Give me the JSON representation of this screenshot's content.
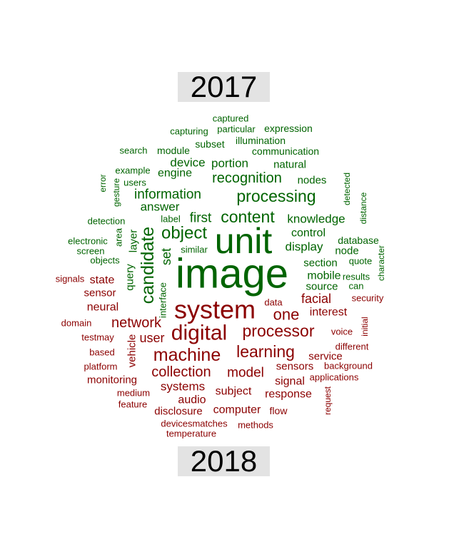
{
  "labels": {
    "top_year": "2017",
    "bottom_year": "2018"
  },
  "colors": {
    "top_words": "#006400",
    "bottom_words": "#8b0000",
    "label_bg": "#e3e3e3"
  },
  "words": [
    {
      "text": "captured",
      "group": "2017"
    },
    {
      "text": "capturing",
      "group": "2017"
    },
    {
      "text": "particular",
      "group": "2017"
    },
    {
      "text": "expression",
      "group": "2017"
    },
    {
      "text": "illumination",
      "group": "2017"
    },
    {
      "text": "search",
      "group": "2017"
    },
    {
      "text": "module",
      "group": "2017"
    },
    {
      "text": "subset",
      "group": "2017"
    },
    {
      "text": "communication",
      "group": "2017"
    },
    {
      "text": "device",
      "group": "2017"
    },
    {
      "text": "portion",
      "group": "2017"
    },
    {
      "text": "natural",
      "group": "2017"
    },
    {
      "text": "example",
      "group": "2017"
    },
    {
      "text": "engine",
      "group": "2017"
    },
    {
      "text": "users",
      "group": "2017"
    },
    {
      "text": "recognition",
      "group": "2017"
    },
    {
      "text": "nodes",
      "group": "2017"
    },
    {
      "text": "error",
      "group": "2017"
    },
    {
      "text": "gesture",
      "group": "2017"
    },
    {
      "text": "information",
      "group": "2017"
    },
    {
      "text": "processing",
      "group": "2017"
    },
    {
      "text": "detected",
      "group": "2017"
    },
    {
      "text": "answer",
      "group": "2017"
    },
    {
      "text": "distance",
      "group": "2017"
    },
    {
      "text": "detection",
      "group": "2017"
    },
    {
      "text": "label",
      "group": "2017"
    },
    {
      "text": "first",
      "group": "2017"
    },
    {
      "text": "content",
      "group": "2017"
    },
    {
      "text": "knowledge",
      "group": "2017"
    },
    {
      "text": "area",
      "group": "2017"
    },
    {
      "text": "layer",
      "group": "2017"
    },
    {
      "text": "candidate",
      "group": "2017"
    },
    {
      "text": "object",
      "group": "2017"
    },
    {
      "text": "unit",
      "group": "2017"
    },
    {
      "text": "control",
      "group": "2017"
    },
    {
      "text": "database",
      "group": "2017"
    },
    {
      "text": "electronic",
      "group": "2017"
    },
    {
      "text": "screen",
      "group": "2017"
    },
    {
      "text": "similar",
      "group": "2017"
    },
    {
      "text": "display",
      "group": "2017"
    },
    {
      "text": "node",
      "group": "2017"
    },
    {
      "text": "character",
      "group": "2017"
    },
    {
      "text": "objects",
      "group": "2017"
    },
    {
      "text": "set",
      "group": "2017"
    },
    {
      "text": "section",
      "group": "2017"
    },
    {
      "text": "quote",
      "group": "2017"
    },
    {
      "text": "image",
      "group": "2017"
    },
    {
      "text": "mobile",
      "group": "2017"
    },
    {
      "text": "results",
      "group": "2017"
    },
    {
      "text": "query",
      "group": "2017"
    },
    {
      "text": "source",
      "group": "2017"
    },
    {
      "text": "can",
      "group": "2017"
    },
    {
      "text": "interface",
      "group": "2017"
    },
    {
      "text": "signals",
      "group": "2018"
    },
    {
      "text": "state",
      "group": "2018"
    },
    {
      "text": "sensor",
      "group": "2018"
    },
    {
      "text": "security",
      "group": "2018"
    },
    {
      "text": "data",
      "group": "2018"
    },
    {
      "text": "facial",
      "group": "2018"
    },
    {
      "text": "system",
      "group": "2018"
    },
    {
      "text": "neural",
      "group": "2018"
    },
    {
      "text": "one",
      "group": "2018"
    },
    {
      "text": "interest",
      "group": "2018"
    },
    {
      "text": "domain",
      "group": "2018"
    },
    {
      "text": "network",
      "group": "2018"
    },
    {
      "text": "initial",
      "group": "2018"
    },
    {
      "text": "processor",
      "group": "2018"
    },
    {
      "text": "digital",
      "group": "2018"
    },
    {
      "text": "voice",
      "group": "2018"
    },
    {
      "text": "testmay",
      "group": "2018"
    },
    {
      "text": "user",
      "group": "2018"
    },
    {
      "text": "different",
      "group": "2018"
    },
    {
      "text": "learning",
      "group": "2018"
    },
    {
      "text": "based",
      "group": "2018"
    },
    {
      "text": "machine",
      "group": "2018"
    },
    {
      "text": "service",
      "group": "2018"
    },
    {
      "text": "vehicle",
      "group": "2018"
    },
    {
      "text": "platform",
      "group": "2018"
    },
    {
      "text": "sensors",
      "group": "2018"
    },
    {
      "text": "background",
      "group": "2018"
    },
    {
      "text": "collection",
      "group": "2018"
    },
    {
      "text": "model",
      "group": "2018"
    },
    {
      "text": "applications",
      "group": "2018"
    },
    {
      "text": "monitoring",
      "group": "2018"
    },
    {
      "text": "signal",
      "group": "2018"
    },
    {
      "text": "systems",
      "group": "2018"
    },
    {
      "text": "medium",
      "group": "2018"
    },
    {
      "text": "subject",
      "group": "2018"
    },
    {
      "text": "response",
      "group": "2018"
    },
    {
      "text": "request",
      "group": "2018"
    },
    {
      "text": "audio",
      "group": "2018"
    },
    {
      "text": "feature",
      "group": "2018"
    },
    {
      "text": "disclosure",
      "group": "2018"
    },
    {
      "text": "computer",
      "group": "2018"
    },
    {
      "text": "flow",
      "group": "2018"
    },
    {
      "text": "devicesmatches",
      "group": "2018"
    },
    {
      "text": "methods",
      "group": "2018"
    },
    {
      "text": "temperature",
      "group": "2018"
    }
  ]
}
